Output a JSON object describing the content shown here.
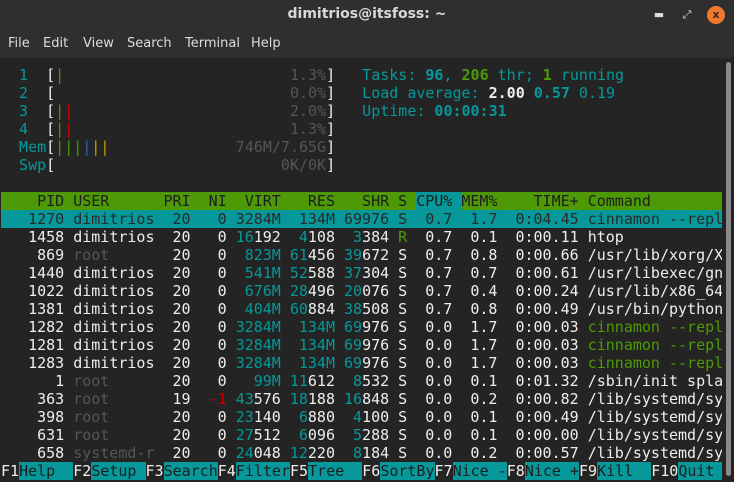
{
  "window": {
    "title": "dimitrios@itsfoss: ~",
    "minimize_icon": "minimize-icon",
    "maximize_icon": "maximize-icon",
    "close_icon": "close-icon"
  },
  "menu": [
    "File",
    "Edit",
    "View",
    "Search",
    "Terminal",
    "Help"
  ],
  "colors": {
    "cyan": "#06989a",
    "green": "#4e9a06",
    "red": "#cc0000",
    "blue": "#3465a4",
    "yellow": "#c4a000",
    "gray": "#555753",
    "background": "#242424"
  },
  "meters": [
    {
      "label": "1",
      "bars": [
        "green"
      ],
      "value": "1.3%"
    },
    {
      "label": "2",
      "bars": [],
      "value": "0.0%"
    },
    {
      "label": "3",
      "bars": [
        "green",
        "red"
      ],
      "value": "2.0%"
    },
    {
      "label": "4",
      "bars": [
        "green",
        "red"
      ],
      "value": "1.3%"
    },
    {
      "label": "Mem",
      "bars": [
        "green",
        "green",
        "green",
        "blue",
        "yellow",
        "yellow"
      ],
      "value": "746M/7.65G"
    },
    {
      "label": "Swp",
      "bars": [],
      "value": "0K/0K"
    }
  ],
  "stats": {
    "tasks_label": "Tasks: ",
    "tasks": "96",
    "sep1": ", ",
    "threads": "206",
    "thr_label": " thr; ",
    "running": "1",
    "running_label": " running",
    "load_label": "Load average: ",
    "load1": "2.00",
    "load5": "0.57",
    "load15": "0.19",
    "uptime_label": "Uptime: ",
    "uptime": "00:00:31"
  },
  "table": {
    "headers": [
      "PID",
      "USER",
      "PRI",
      "NI",
      "VIRT",
      "RES",
      "SHR",
      "S",
      "CPU%",
      "MEM%",
      "TIME+",
      "Command"
    ],
    "sort_column": "CPU%",
    "rows": [
      {
        "pid": "1270",
        "user": "dimitrios",
        "pri": "20",
        "ni": "0",
        "virt": "3284M",
        "res": "134M",
        "shr": "69976",
        "s": "S",
        "cpu": "0.7",
        "mem": "1.7",
        "time": "0:04.45",
        "cmd": "cinnamon --repl",
        "selected": true
      },
      {
        "pid": "1458",
        "user": "dimitrios",
        "pri": "20",
        "ni": "0",
        "virt": "16192",
        "res": "4108",
        "shr": "3384",
        "s": "R",
        "cpu": "0.7",
        "mem": "0.1",
        "time": "0:00.11",
        "cmd": "htop"
      },
      {
        "pid": "869",
        "user": "root",
        "pri": "20",
        "ni": "0",
        "virt": "823M",
        "res": "61456",
        "shr": "39672",
        "s": "S",
        "cpu": "0.7",
        "mem": "0.8",
        "time": "0:00.66",
        "cmd": "/usr/lib/xorg/X"
      },
      {
        "pid": "1440",
        "user": "dimitrios",
        "pri": "20",
        "ni": "0",
        "virt": "541M",
        "res": "52588",
        "shr": "37304",
        "s": "S",
        "cpu": "0.7",
        "mem": "0.7",
        "time": "0:00.61",
        "cmd": "/usr/libexec/gn"
      },
      {
        "pid": "1022",
        "user": "dimitrios",
        "pri": "20",
        "ni": "0",
        "virt": "676M",
        "res": "28496",
        "shr": "20076",
        "s": "S",
        "cpu": "0.7",
        "mem": "0.4",
        "time": "0:00.24",
        "cmd": "/usr/lib/x86_64"
      },
      {
        "pid": "1381",
        "user": "dimitrios",
        "pri": "20",
        "ni": "0",
        "virt": "404M",
        "res": "60884",
        "shr": "38508",
        "s": "S",
        "cpu": "0.7",
        "mem": "0.8",
        "time": "0:00.49",
        "cmd": "/usr/bin/python"
      },
      {
        "pid": "1282",
        "user": "dimitrios",
        "pri": "20",
        "ni": "0",
        "virt": "3284M",
        "res": "134M",
        "shr": "69976",
        "s": "S",
        "cpu": "0.0",
        "mem": "1.7",
        "time": "0:00.03",
        "cmd": "cinnamon --repl",
        "thread": true
      },
      {
        "pid": "1281",
        "user": "dimitrios",
        "pri": "20",
        "ni": "0",
        "virt": "3284M",
        "res": "134M",
        "shr": "69976",
        "s": "S",
        "cpu": "0.0",
        "mem": "1.7",
        "time": "0:00.03",
        "cmd": "cinnamon --repl",
        "thread": true
      },
      {
        "pid": "1283",
        "user": "dimitrios",
        "pri": "20",
        "ni": "0",
        "virt": "3284M",
        "res": "134M",
        "shr": "69976",
        "s": "S",
        "cpu": "0.0",
        "mem": "1.7",
        "time": "0:00.03",
        "cmd": "cinnamon --repl",
        "thread": true
      },
      {
        "pid": "1",
        "user": "root",
        "pri": "20",
        "ni": "0",
        "virt": "99M",
        "res": "11612",
        "shr": "8532",
        "s": "S",
        "cpu": "0.0",
        "mem": "0.1",
        "time": "0:01.32",
        "cmd": "/sbin/init spla"
      },
      {
        "pid": "363",
        "user": "root",
        "pri": "19",
        "ni": "-1",
        "virt": "43576",
        "res": "18188",
        "shr": "16848",
        "s": "S",
        "cpu": "0.0",
        "mem": "0.2",
        "time": "0:00.82",
        "cmd": "/lib/systemd/sy"
      },
      {
        "pid": "398",
        "user": "root",
        "pri": "20",
        "ni": "0",
        "virt": "23140",
        "res": "6880",
        "shr": "4100",
        "s": "S",
        "cpu": "0.0",
        "mem": "0.1",
        "time": "0:00.49",
        "cmd": "/lib/systemd/sy"
      },
      {
        "pid": "631",
        "user": "root",
        "pri": "20",
        "ni": "0",
        "virt": "27512",
        "res": "6096",
        "shr": "5288",
        "s": "S",
        "cpu": "0.0",
        "mem": "0.1",
        "time": "0:00.00",
        "cmd": "/lib/systemd/sy"
      },
      {
        "pid": "658",
        "user": "systemd-r",
        "pri": "20",
        "ni": "0",
        "virt": "24048",
        "res": "12220",
        "shr": "8184",
        "s": "S",
        "cpu": "0.0",
        "mem": "0.2",
        "time": "0:00.57",
        "cmd": "/lib/systemd/sy"
      }
    ]
  },
  "footer": [
    {
      "key": "F1",
      "label": "Help  "
    },
    {
      "key": "F2",
      "label": "Setup "
    },
    {
      "key": "F3",
      "label": "Search"
    },
    {
      "key": "F4",
      "label": "Filter"
    },
    {
      "key": "F5",
      "label": "Tree  "
    },
    {
      "key": "F6",
      "label": "SortBy"
    },
    {
      "key": "F7",
      "label": "Nice -"
    },
    {
      "key": "F8",
      "label": "Nice +"
    },
    {
      "key": "F9",
      "label": "Kill  "
    },
    {
      "key": "F10",
      "label": "Quit  "
    }
  ]
}
